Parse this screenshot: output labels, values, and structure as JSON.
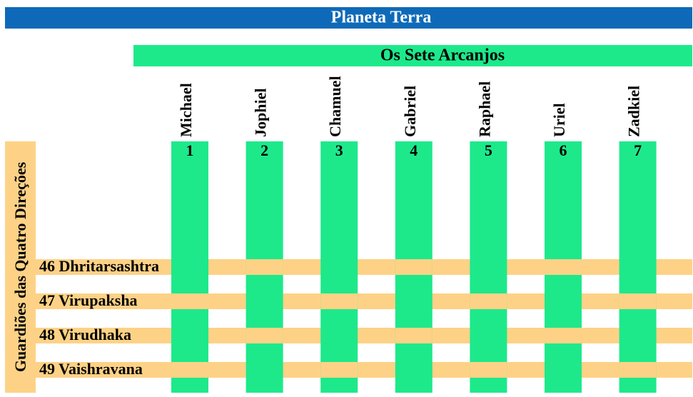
{
  "header": {
    "title": "Planeta Terra"
  },
  "arcanjos": {
    "title": "Os Sete Arcanjos",
    "items": [
      {
        "name": "Michael",
        "number": 1
      },
      {
        "name": "Jophiel",
        "number": 2
      },
      {
        "name": "Chamuel",
        "number": 3
      },
      {
        "name": "Gabriel",
        "number": 4
      },
      {
        "name": "Raphael",
        "number": 5
      },
      {
        "name": "Uriel",
        "number": 6
      },
      {
        "name": "Zadkiel",
        "number": 7
      }
    ]
  },
  "guardioes": {
    "title": "Guardiões das Quatro Direções",
    "items": [
      "46 Dhritarsashtra",
      "47 Virupaksha",
      "48 Virudhaka",
      "49 Vaishravana"
    ]
  }
}
